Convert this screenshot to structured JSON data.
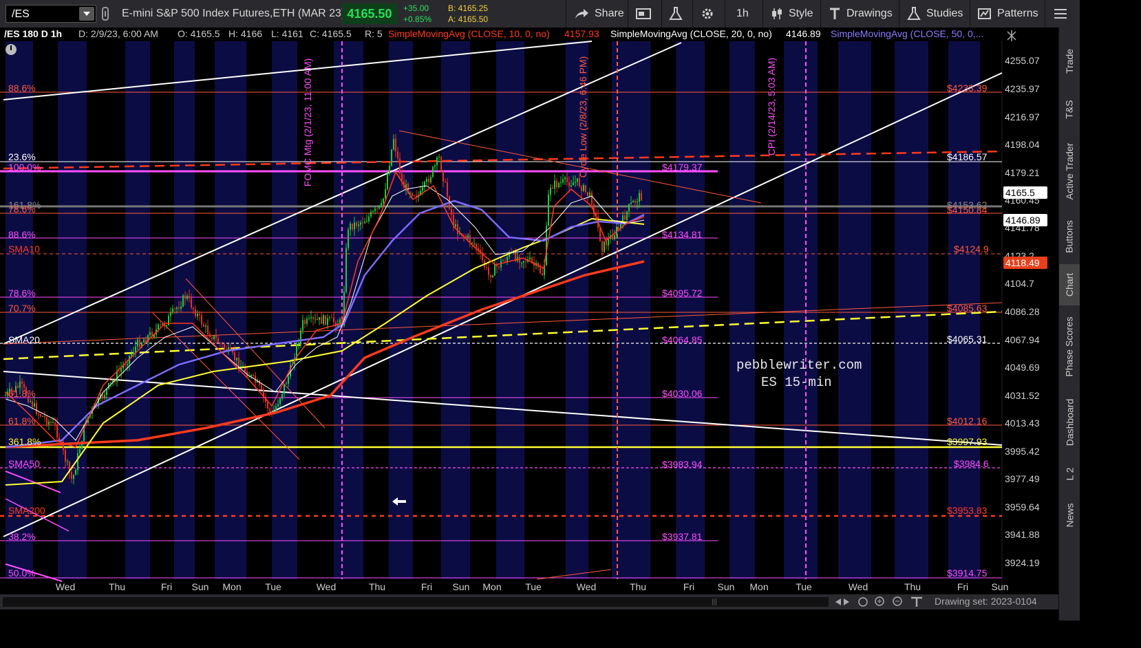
{
  "toolbar": {
    "symbol": "/ES",
    "description": "E-mini S&P 500 Index Futures,ETH (MAR 23)",
    "last_price": "4165.50",
    "change": "+35.00",
    "change_pct": "+0.85%",
    "bid": "B: 4165.25",
    "ask": "A: 4165.50",
    "share": "Share",
    "timeframe": "1h",
    "style": "Style",
    "drawings": "Drawings",
    "studies": "Studies",
    "patterns": "Patterns"
  },
  "headline": {
    "symbol_period": "/ES 180 D 1h",
    "date": "D: 2/9/23, 6:00 AM",
    "open": "O: 4165.5",
    "high": "H: 4166",
    "low": "L: 4161",
    "close": "C: 4165.5",
    "range": "R: 5",
    "sma10_label": "SimpleMovingAvg (CLOSE, 10, 0, no)",
    "sma10_value": "4157.93",
    "sma20_label": "SimpleMovingAvg (CLOSE, 20, 0, no)",
    "sma20_value": "4146.89",
    "sma50_label": "SimpleMovingAvg (CLOSE, 50, 0,..."
  },
  "price_axis": [
    "4255.07",
    "4235.97",
    "4216.97",
    "4198.04",
    "4179.21",
    "4160.45",
    "4141.78",
    "4123.2",
    "4104.7",
    "4086.28",
    "4067.94",
    "4049.69",
    "4031.52",
    "4013.43",
    "3995.42",
    "3977.49",
    "3959.64",
    "3941.88",
    "3924.19"
  ],
  "price_tags": [
    {
      "text": "4165.5",
      "bg": "#ffffff",
      "fg": "#000000",
      "price": 4165.5
    },
    {
      "text": "4146.89",
      "bg": "#ffffff",
      "fg": "#000000",
      "price": 4146.89
    },
    {
      "text": "4118.49",
      "bg": "#e8401c",
      "fg": "#ffffff",
      "price": 4118.49
    }
  ],
  "time_axis": [
    "Wed",
    "Thu",
    "Fri",
    "Sun",
    "Mon",
    "Tue",
    "Wed",
    "Thu",
    "Fri",
    "Sun",
    "Mon",
    "Tue",
    "Wed",
    "Thu",
    "Fri",
    "Sun",
    "Mon",
    "Tue",
    "Wed",
    "Thu",
    "Fri",
    "Sun"
  ],
  "left_labels": [
    {
      "text": "88.6%",
      "color": "#ff5a3c"
    },
    {
      "text": "23.6%",
      "color": "#ffffff"
    },
    {
      "text": "100.0%",
      "color": "#ff4fff"
    },
    {
      "text": "161.8%",
      "color": "#888888"
    },
    {
      "text": "78.6%",
      "color": "#ff5a3c"
    },
    {
      "text": "88.6%",
      "color": "#ff4fff"
    },
    {
      "text": "SMA10",
      "color": "#ff3a1e"
    },
    {
      "text": "78.6%",
      "color": "#ff4fff"
    },
    {
      "text": "70.7%",
      "color": "#ff5a3c"
    },
    {
      "text": "SMA20",
      "color": "#ffffff"
    },
    {
      "text": "61.8%",
      "color": "#ff5a3c"
    },
    {
      "text": "61.8%",
      "color": "#ff5a3c"
    },
    {
      "text": "361.8%",
      "color": "#ffff33"
    },
    {
      "text": "SMA50",
      "color": "#ff4fff"
    },
    {
      "text": "SMA200",
      "color": "#ff3a1e"
    },
    {
      "text": "38.2%",
      "color": "#ff4fff"
    },
    {
      "text": "50.0%",
      "color": "#ff4fff"
    }
  ],
  "level_labels": [
    {
      "text": "$4233.39",
      "color": "#ff5a3c"
    },
    {
      "text": "$4186.57",
      "color": "#ffffff"
    },
    {
      "text": "$4179.37",
      "color": "#ff4fff"
    },
    {
      "text": "$4153.62",
      "color": "#888888"
    },
    {
      "text": "$4150.84",
      "color": "#ff5a3c"
    },
    {
      "text": "$4134.81",
      "color": "#ff4fff"
    },
    {
      "text": "$4124.9",
      "color": "#ff5a3c"
    },
    {
      "text": "$4095.72",
      "color": "#ff4fff"
    },
    {
      "text": "$4085.63",
      "color": "#ff5a3c"
    },
    {
      "text": "$4064.85",
      "color": "#ff4fff"
    },
    {
      "text": "$4065.31",
      "color": "#ffffff"
    },
    {
      "text": "$4030.06",
      "color": "#ff4fff"
    },
    {
      "text": "$4012.16",
      "color": "#ff5a3c"
    },
    {
      "text": "$3997.93",
      "color": "#ffff33"
    },
    {
      "text": "$3983.94",
      "color": "#ff4fff"
    },
    {
      "text": "$3984.6",
      "color": "#ff4fff"
    },
    {
      "text": "$3953.83",
      "color": "#ff3a1e"
    },
    {
      "text": "$3937.81",
      "color": "#ff4fff"
    },
    {
      "text": "$3914.75",
      "color": "#ff4fff"
    }
  ],
  "event_labels": [
    {
      "text": "FOMC Mtg (2/1/23, 11:00 AM)",
      "color": "#ff4fff"
    },
    {
      "text": "Cycle Low (2/8/23, 6:46 PM)",
      "color": "#ff5a3c"
    },
    {
      "text": "CPI (2/14/23, 5:03 AM)",
      "color": "#ff4fff"
    }
  ],
  "watermark": {
    "line1": "pebblewriter.com",
    "line2": "ES 15-min"
  },
  "right_tabs": [
    "Trade",
    "T&S",
    "Active Trader",
    "Buttons",
    "Chart",
    "Phase Scores",
    "Dashboard",
    "L 2",
    "News"
  ],
  "drawing_set": "Drawing set: 2023-0104",
  "colors": {
    "accent_green": "#00c853",
    "sma10": "#ff3a1e",
    "sma20": "#ffffff",
    "sma50": "#7b6cff",
    "sma200": "#ff3a1e",
    "fib_magenta": "#ff4fff",
    "fib_orange": "#ff5a3c"
  }
}
